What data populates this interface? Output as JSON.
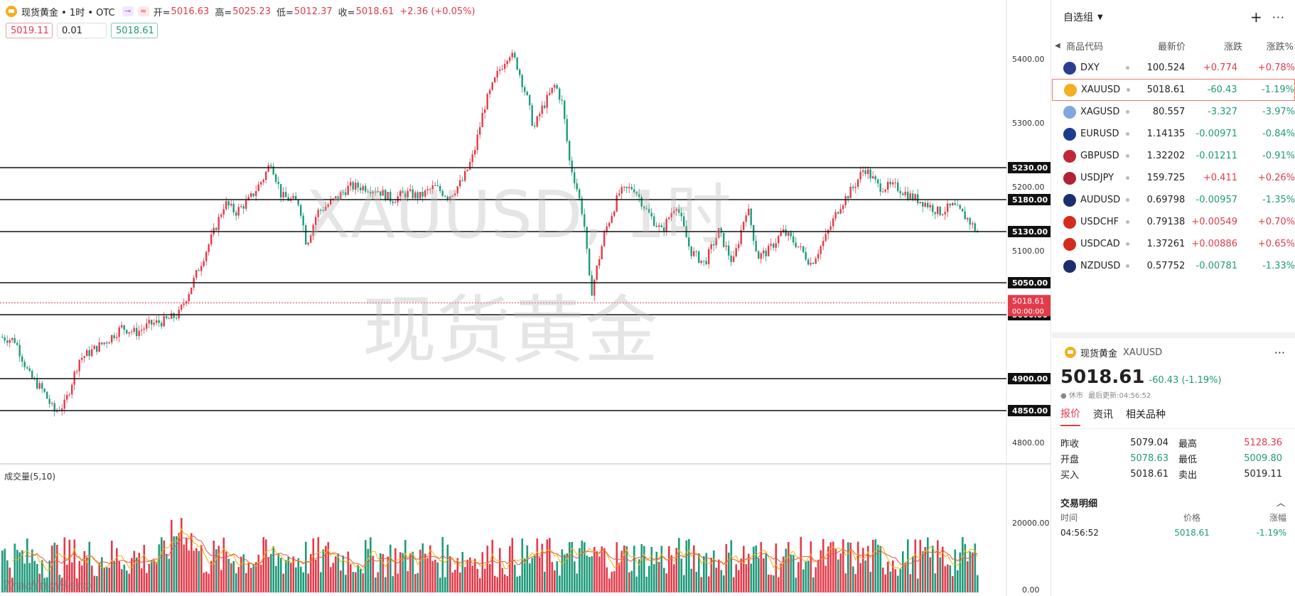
{
  "header": {
    "title": "现货黄金 • 1时 • OTC",
    "open_label": "开=",
    "open": "5016.63",
    "high_label": "高=",
    "high": "5025.23",
    "low_label": "低=",
    "low": "5012.37",
    "close_label": "收=",
    "close": "5018.61",
    "change": "+2.36 (+0.05%)"
  },
  "quick_trade": {
    "sell": "5019.11",
    "qty": "0.01",
    "buy": "5018.61"
  },
  "watermark": {
    "symbol": "XAUUSD, 1时",
    "name": "现货黄金"
  },
  "volume_label": "成交量(5,10)",
  "brand": "TradingHero",
  "chart_data": {
    "type": "candlestick",
    "symbol": "XAUUSD",
    "interval": "1时",
    "last_price": "5018.61",
    "countdown": "00:00:00",
    "price_axis_ticks": [
      "5400.00",
      "5300.00",
      "5200.00",
      "5100.00",
      "4900.00",
      "4800.00"
    ],
    "level_lines": [
      "5230.00",
      "5180.00",
      "5130.00",
      "5050.00",
      "5000.00",
      "4900.00",
      "4850.00"
    ],
    "volume_axis_ticks": [
      "20000.00",
      "0.00"
    ],
    "ylim": [
      4770,
      5460
    ],
    "colors": {
      "up": "#e23b4a",
      "down": "#1e9a7a"
    }
  },
  "watchlist": {
    "title": "自选组",
    "add_icon": "plus-icon",
    "more_icon": "more-icon",
    "columns": {
      "symbol": "商品代码",
      "price": "最新价",
      "change": "涨跌",
      "pct": "涨跌%"
    },
    "rows": [
      {
        "symbol": "DXY",
        "price": "100.524",
        "change": "+0.774",
        "pct": "+0.78%",
        "dir": "up",
        "flag": "#2a3f8f"
      },
      {
        "symbol": "XAUUSD",
        "price": "5018.61",
        "change": "-60.43",
        "pct": "-1.19%",
        "dir": "dn",
        "flag": "#f2b01e"
      },
      {
        "symbol": "XAGUSD",
        "price": "80.557",
        "change": "-3.327",
        "pct": "-3.97%",
        "dir": "dn",
        "flag": "#7fa8e0"
      },
      {
        "symbol": "EURUSD",
        "price": "1.14135",
        "change": "-0.00971",
        "pct": "-0.84%",
        "dir": "dn",
        "flag": "#1d3b8f"
      },
      {
        "symbol": "GBPUSD",
        "price": "1.32202",
        "change": "-0.01211",
        "pct": "-0.91%",
        "dir": "dn",
        "flag": "#c0283a"
      },
      {
        "symbol": "USDJPY",
        "price": "159.725",
        "change": "+0.411",
        "pct": "+0.26%",
        "dir": "up",
        "flag": "#b22234"
      },
      {
        "symbol": "AUDUSD",
        "price": "0.69798",
        "change": "-0.00957",
        "pct": "-1.35%",
        "dir": "dn",
        "flag": "#1b2f6e"
      },
      {
        "symbol": "USDCHF",
        "price": "0.79138",
        "change": "+0.00549",
        "pct": "+0.70%",
        "dir": "up",
        "flag": "#d52b1e"
      },
      {
        "symbol": "USDCAD",
        "price": "1.37261",
        "change": "+0.00886",
        "pct": "+0.65%",
        "dir": "up",
        "flag": "#d52b1e"
      },
      {
        "symbol": "NZDUSD",
        "price": "0.57752",
        "change": "-0.00781",
        "pct": "-1.33%",
        "dir": "dn",
        "flag": "#1b2f6e"
      }
    ]
  },
  "detail": {
    "name": "现货黄金",
    "symbol": "XAUUSD",
    "price": "5018.61",
    "change": "-60.43 (-1.19%)",
    "status": "休市",
    "updated": "最后更新:04:56:52",
    "tabs": [
      "报价",
      "资讯",
      "相关品种"
    ],
    "stats": {
      "prev_close_label": "昨收",
      "prev_close": "5079.04",
      "high_label": "最高",
      "high": "5128.36",
      "open_label": "开盘",
      "open": "5078.63",
      "low_label": "最低",
      "low": "5009.80",
      "buy_label": "买入",
      "buy": "5018.61",
      "sell_label": "卖出",
      "sell": "5019.11"
    },
    "trades": {
      "title": "交易明细",
      "col_time": "时间",
      "col_price": "价格",
      "col_change": "涨幅",
      "rows": [
        {
          "time": "04:56:52",
          "price": "5018.61",
          "change": "-1.19%"
        }
      ]
    }
  }
}
